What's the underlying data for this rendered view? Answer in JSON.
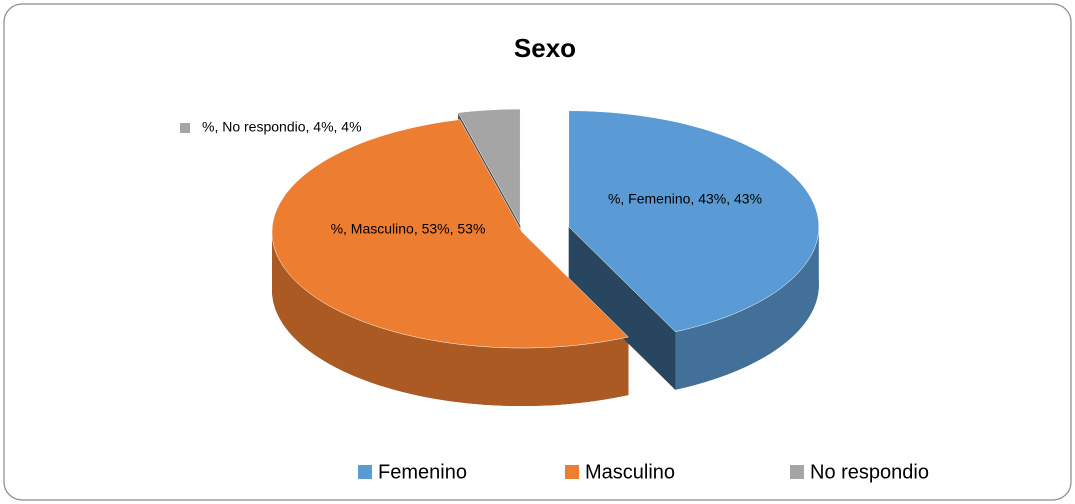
{
  "chart_data": {
    "type": "pie",
    "title": "Sexo",
    "categories": [
      "Femenino",
      "Masculino",
      "No respondio"
    ],
    "values": [
      43,
      53,
      4
    ],
    "value_labels": [
      "%, Femenino, 43%, 43%",
      "%, Masculino, 53%, 53%",
      "%, No respondio, 4%, 4%"
    ],
    "colors": [
      "#5b9bd5",
      "#ed7d31",
      "#a5a5a5"
    ],
    "legend": "bottom"
  }
}
